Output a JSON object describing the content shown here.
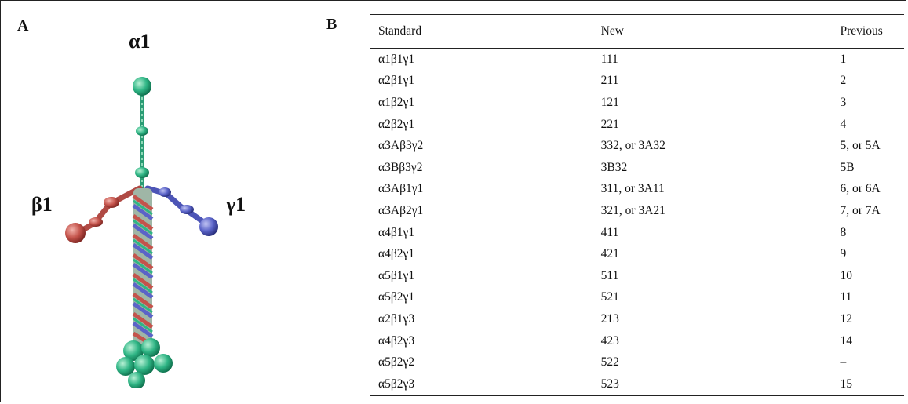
{
  "panel_a": {
    "label": "A",
    "chain_alpha": "α1",
    "chain_beta": "β1",
    "chain_gamma": "γ1"
  },
  "panel_b": {
    "label": "B",
    "headers": [
      "Standard",
      "New",
      "Previous"
    ],
    "rows": [
      [
        "α1β1γ1",
        "111",
        "1"
      ],
      [
        "α2β1γ1",
        "211",
        "2"
      ],
      [
        "α1β2γ1",
        "121",
        "3"
      ],
      [
        "α2β2γ1",
        "221",
        "4"
      ],
      [
        "α3Aβ3γ2",
        "332, or 3A32",
        "5, or 5A"
      ],
      [
        "α3Bβ3γ2",
        "3B32",
        "5B"
      ],
      [
        "α3Aβ1γ1",
        "311, or 3A11",
        "6, or 6A"
      ],
      [
        "α3Aβ2γ1",
        "321, or 3A21",
        "7, or 7A"
      ],
      [
        "α4β1γ1",
        "411",
        "8"
      ],
      [
        "α4β2γ1",
        "421",
        "9"
      ],
      [
        "α5β1γ1",
        "511",
        "10"
      ],
      [
        "α5β2γ1",
        "521",
        "11"
      ],
      [
        "α2β1γ3",
        "213",
        "12"
      ],
      [
        "α4β2γ3",
        "423",
        "14"
      ],
      [
        "α5β2γ2",
        "522",
        "–"
      ],
      [
        "α5β2γ3",
        "523",
        "15"
      ]
    ]
  }
}
